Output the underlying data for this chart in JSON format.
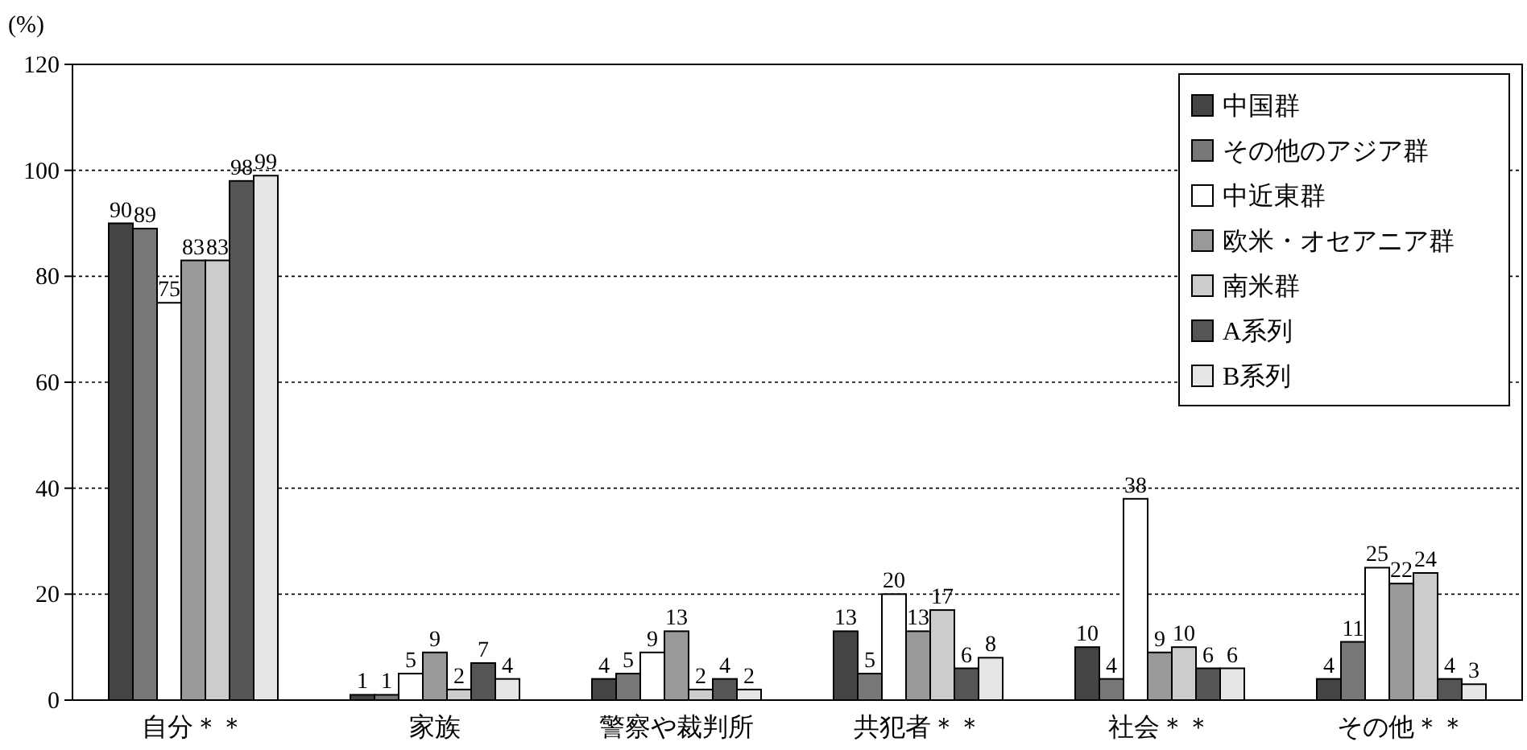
{
  "chart_data": {
    "type": "bar",
    "ylabel": "(%)",
    "categories": [
      "自分＊＊",
      "家族",
      "警察や裁判所",
      "共犯者＊＊",
      "社会＊＊",
      "その他＊＊"
    ],
    "series": [
      {
        "name": "中国群",
        "color": "#444444",
        "values": [
          90,
          1,
          4,
          13,
          10,
          4
        ]
      },
      {
        "name": "その他のアジア群",
        "color": "#777777",
        "values": [
          89,
          1,
          5,
          5,
          4,
          11
        ]
      },
      {
        "name": "中近東群",
        "color": "#ffffff",
        "values": [
          75,
          5,
          9,
          20,
          38,
          25
        ]
      },
      {
        "name": "欧米・オセアニア群",
        "color": "#999999",
        "values": [
          83,
          9,
          13,
          13,
          9,
          22
        ]
      },
      {
        "name": "南米群",
        "color": "#cccccc",
        "values": [
          83,
          2,
          2,
          17,
          10,
          24
        ]
      },
      {
        "name": "A系列",
        "color": "#555555",
        "values": [
          98,
          7,
          4,
          6,
          6,
          4
        ]
      },
      {
        "name": "B系列",
        "color": "#e6e6e6",
        "values": [
          99,
          4,
          2,
          8,
          6,
          3
        ]
      }
    ],
    "ylim": [
      0,
      120
    ],
    "yticks": [
      0,
      20,
      40,
      60,
      80,
      100,
      120
    ],
    "grid": "y",
    "legend": "top right",
    "data_labels": true
  }
}
